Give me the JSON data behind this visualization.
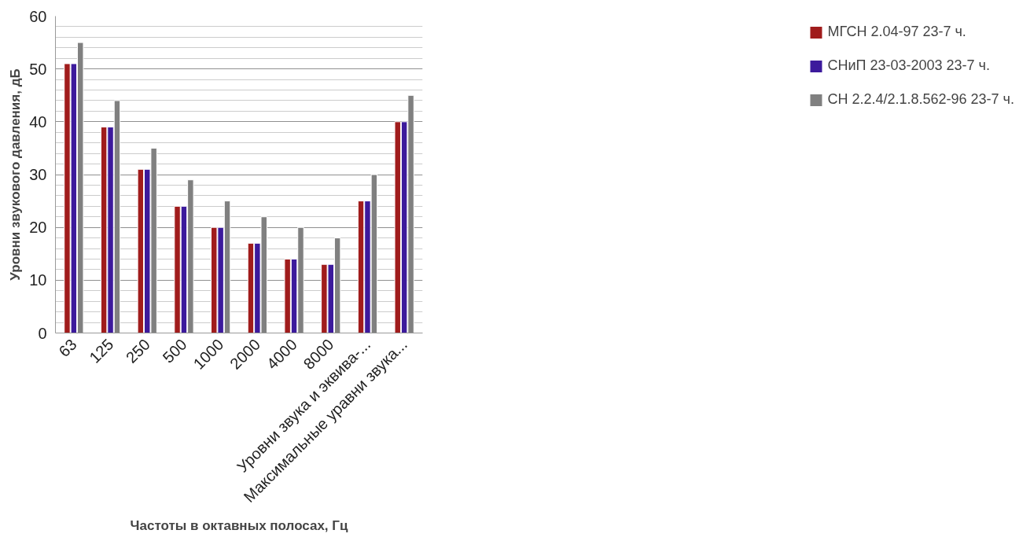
{
  "chart_data": {
    "type": "bar",
    "xlabel": "Частоты в октавных полосах, Гц",
    "ylabel": "Уровни звукового давления, дБ",
    "categories": [
      "63",
      "125",
      "250",
      "500",
      "1000",
      "2000",
      "4000",
      "8000",
      "Уровни звука и эквива-...",
      "Максимальные уравни звука..."
    ],
    "series": [
      {
        "name": "МГСН 2.04-97 23-7 ч.",
        "color": "#a01c1c",
        "values": [
          51,
          39,
          31,
          24,
          20,
          17,
          14,
          13,
          25,
          40
        ]
      },
      {
        "name": "СНиП 23-03-2003 23-7 ч.",
        "color": "#3c1a9c",
        "values": [
          51,
          39,
          31,
          24,
          20,
          17,
          14,
          13,
          25,
          40
        ]
      },
      {
        "name": "СН 2.2.4/2.1.8.562-96 23-7 ч.",
        "color": "#808080",
        "values": [
          55,
          44,
          35,
          29,
          25,
          22,
          20,
          18,
          30,
          45
        ]
      }
    ],
    "ylim": [
      0,
      60
    ],
    "yticks": [
      0,
      10,
      20,
      30,
      40,
      50,
      60
    ],
    "grid": "y",
    "legend": "right"
  }
}
